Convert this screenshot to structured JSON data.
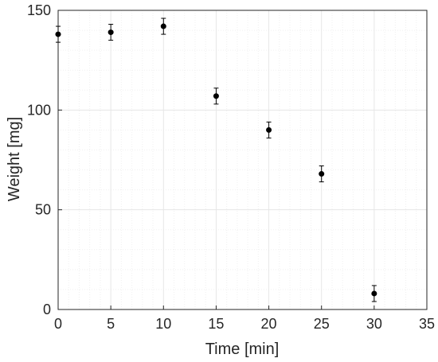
{
  "chart_data": {
    "type": "scatter",
    "title": "",
    "xlabel": "Time [min]",
    "ylabel": "Weight [mg]",
    "xlim": [
      0,
      35
    ],
    "ylim": [
      0,
      150
    ],
    "xticks": [
      "0",
      "5",
      "10",
      "15",
      "20",
      "25",
      "30",
      "35"
    ],
    "yticks": [
      "0",
      "50",
      "100",
      "150"
    ],
    "grid": true,
    "minor_grid": true,
    "series": [
      {
        "points": [
          {
            "x": 0,
            "y": 138,
            "err": 4
          },
          {
            "x": 5,
            "y": 139,
            "err": 4
          },
          {
            "x": 10,
            "y": 142,
            "err": 4
          },
          {
            "x": 15,
            "y": 107,
            "err": 4
          },
          {
            "x": 20,
            "y": 90,
            "err": 4
          },
          {
            "x": 25,
            "y": 68,
            "err": 4
          },
          {
            "x": 30,
            "y": 8,
            "err": 4
          }
        ],
        "color": "#000000"
      }
    ],
    "colors": {
      "axis": "#262626",
      "grid": "#e6e6e6",
      "minor_grid": "#f0f0f0",
      "marker": "#000000"
    }
  }
}
